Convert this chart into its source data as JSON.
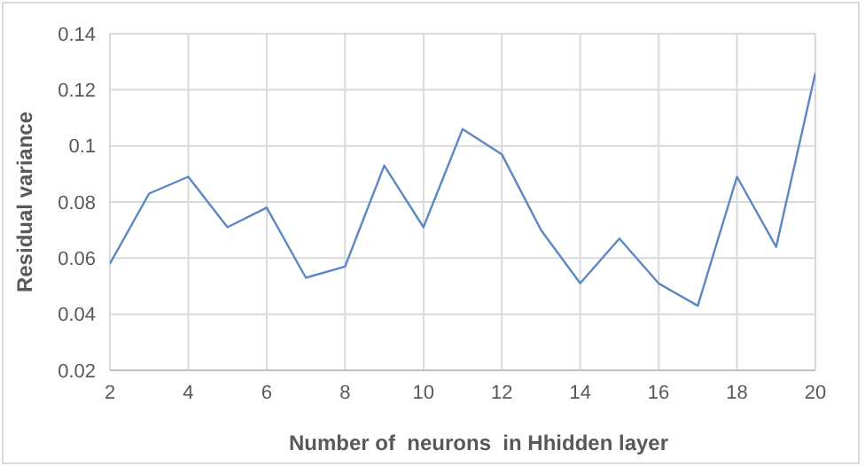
{
  "chart_data": {
    "type": "line",
    "xlabel": "Number of  neurons  in Hhidden layer",
    "ylabel": "Residual variance",
    "x": [
      2,
      3,
      4,
      5,
      6,
      7,
      8,
      9,
      10,
      11,
      12,
      13,
      14,
      15,
      16,
      17,
      18,
      19,
      20
    ],
    "series": [
      {
        "color": "#5b87c5",
        "values": [
          0.058,
          0.083,
          0.089,
          0.071,
          0.078,
          0.053,
          0.057,
          0.093,
          0.071,
          0.106,
          0.097,
          0.07,
          0.051,
          0.067,
          0.051,
          0.043,
          0.089,
          0.064,
          0.126
        ]
      }
    ],
    "xlim": [
      2,
      20
    ],
    "xticks": [
      2,
      4,
      6,
      8,
      10,
      12,
      14,
      16,
      18,
      20
    ],
    "ylim": [
      0.02,
      0.14
    ],
    "yticks": [
      0.02,
      0.04,
      0.06,
      0.08,
      0.1,
      0.12,
      0.14
    ],
    "grid": true,
    "marker": "none",
    "line_style": "solid",
    "legend": false
  }
}
